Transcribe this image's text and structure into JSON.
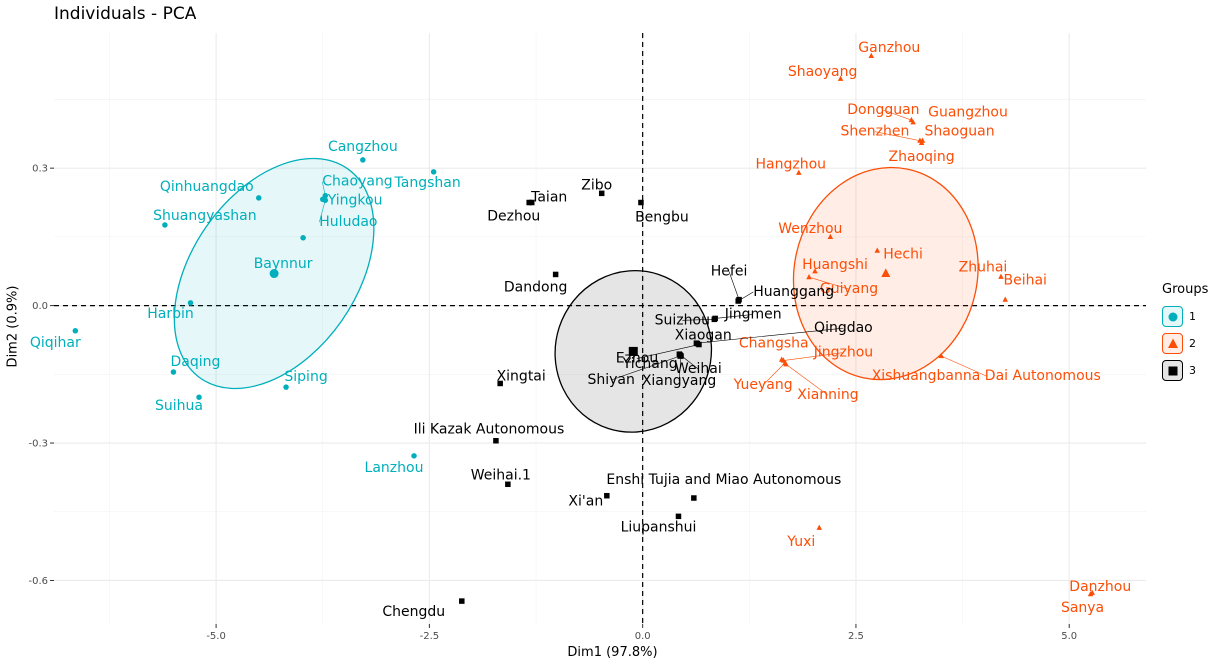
{
  "chart_data": {
    "type": "scatter",
    "title": "Individuals - PCA",
    "xlabel": "Dim1 (97.8%)",
    "ylabel": "Dim2 (0.9%)",
    "xlim": [
      -6.9,
      5.9
    ],
    "ylim": [
      -0.695,
      0.595
    ],
    "xticks": [
      -5.0,
      -2.5,
      0.0,
      2.5,
      5.0
    ],
    "xtick_labels": [
      "-5.0",
      "-2.5",
      "0.0",
      "2.5",
      "5.0"
    ],
    "yticks": [
      -0.6,
      -0.3,
      0.0,
      0.3
    ],
    "ytick_labels": [
      "-0.6",
      "-0.3",
      "0.0",
      "0.3"
    ],
    "grid": true,
    "legend_title": "Groups",
    "legend_position": "right",
    "series": [
      {
        "name": "1",
        "color": "#00AFBB",
        "marker": "circle",
        "centroid": [
          -4.32,
          0.07
        ],
        "ellipse": {
          "center": [
            -4.32,
            0.07
          ],
          "rx": 1.5,
          "ry": 0.18,
          "angle_deg": -55
        },
        "points": [
          {
            "label": "Cangzhou",
            "x": -3.28,
            "y": 0.318
          },
          {
            "label": "Tangshan",
            "x": -2.45,
            "y": 0.292
          },
          {
            "label": "Qinhuangdao",
            "x": -4.5,
            "y": 0.235
          },
          {
            "label": "Chaoyang",
            "x": -3.72,
            "y": 0.24
          },
          {
            "label": "Yingkou",
            "x": -3.75,
            "y": 0.232
          },
          {
            "label": "Huludao",
            "x": -3.72,
            "y": 0.23
          },
          {
            "label": "Shuangyashan",
            "x": -5.6,
            "y": 0.176
          },
          {
            "label": "Baynnur",
            "x": -3.98,
            "y": 0.148
          },
          {
            "label": "Harbin",
            "x": -5.3,
            "y": 0.006
          },
          {
            "label": "Qiqihar",
            "x": -6.65,
            "y": -0.055
          },
          {
            "label": "Daqing",
            "x": -5.5,
            "y": -0.145
          },
          {
            "label": "Siping",
            "x": -4.18,
            "y": -0.178
          },
          {
            "label": "Suihua",
            "x": -5.2,
            "y": -0.2
          },
          {
            "label": "Lanzhou",
            "x": -2.68,
            "y": -0.328
          }
        ]
      },
      {
        "name": "2",
        "color": "#FC4E07",
        "marker": "triangle",
        "centroid": [
          2.85,
          0.07
        ],
        "ellipse": {
          "center": [
            2.85,
            0.07
          ],
          "rx": 1.25,
          "ry": 0.2,
          "angle_deg": -78
        },
        "points": [
          {
            "label": "Ganzhou",
            "x": 2.68,
            "y": 0.545
          },
          {
            "label": "Shaoyang",
            "x": 2.32,
            "y": 0.495
          },
          {
            "label": "Dongguan",
            "x": 3.15,
            "y": 0.405
          },
          {
            "label": "Guangzhou",
            "x": 3.17,
            "y": 0.4
          },
          {
            "label": "Shenzhen",
            "x": 3.25,
            "y": 0.36
          },
          {
            "label": "Shaoguan",
            "x": 3.28,
            "y": 0.36
          },
          {
            "label": "Zhaoqing",
            "x": 3.27,
            "y": 0.355
          },
          {
            "label": "Hangzhou",
            "x": 1.83,
            "y": 0.29
          },
          {
            "label": "Wenzhou",
            "x": 2.2,
            "y": 0.15
          },
          {
            "label": "Hechi",
            "x": 2.75,
            "y": 0.12
          },
          {
            "label": "Huangshi",
            "x": 2.02,
            "y": 0.075
          },
          {
            "label": "Guiyang",
            "x": 1.95,
            "y": 0.062
          },
          {
            "label": "Zhuhai",
            "x": 4.2,
            "y": 0.063
          },
          {
            "label": "Beihai",
            "x": 4.25,
            "y": 0.013
          },
          {
            "label": "Changsha",
            "x": 1.63,
            "y": -0.118
          },
          {
            "label": "Jingzhou",
            "x": 1.65,
            "y": -0.12
          },
          {
            "label": "Yueyang",
            "x": 1.67,
            "y": -0.125
          },
          {
            "label": "Xianning",
            "x": 1.68,
            "y": -0.128
          },
          {
            "label": "Xishuangbanna Dai Autonomous",
            "x": 3.5,
            "y": -0.11
          },
          {
            "label": "Yuxi",
            "x": 2.07,
            "y": -0.485
          },
          {
            "label": "Danzhou",
            "x": 5.27,
            "y": -0.627
          },
          {
            "label": "Sanya",
            "x": 5.25,
            "y": -0.63
          }
        ]
      },
      {
        "name": "3",
        "color": "#000000",
        "marker": "square",
        "centroid": [
          -0.11,
          -0.1
        ],
        "ellipse": {
          "center": [
            -0.11,
            -0.1
          ],
          "rx": 0.95,
          "ry": 0.17,
          "angle_deg": -72
        },
        "points": [
          {
            "label": "Zibo",
            "x": -0.48,
            "y": 0.245
          },
          {
            "label": "Taian",
            "x": -1.33,
            "y": 0.225
          },
          {
            "label": "Dezhou",
            "x": -1.3,
            "y": 0.225
          },
          {
            "label": "Bengbu",
            "x": -0.02,
            "y": 0.225
          },
          {
            "label": "Dandong",
            "x": -1.02,
            "y": 0.068
          },
          {
            "label": "Hefei",
            "x": 1.13,
            "y": 0.013
          },
          {
            "label": "Huanggang",
            "x": 1.12,
            "y": 0.01
          },
          {
            "label": "Suizhou",
            "x": 0.84,
            "y": -0.03
          },
          {
            "label": "Jingmen",
            "x": 0.85,
            "y": -0.028
          },
          {
            "label": "Ezhou",
            "x": 0.66,
            "y": -0.085
          },
          {
            "label": "Xiaogan",
            "x": 0.64,
            "y": -0.083
          },
          {
            "label": "Qingdao",
            "x": 0.63,
            "y": -0.082
          },
          {
            "label": "Yichang",
            "x": 0.44,
            "y": -0.108
          },
          {
            "label": "Weihai",
            "x": 0.43,
            "y": -0.106
          },
          {
            "label": "Shiyan",
            "x": 0.44,
            "y": -0.11
          },
          {
            "label": "Xiangyang",
            "x": 0.45,
            "y": -0.11
          },
          {
            "label": "Xingtai",
            "x": -1.67,
            "y": -0.17
          },
          {
            "label": "Ili Kazak Autonomous",
            "x": -1.72,
            "y": -0.295
          },
          {
            "label": "Weihai.1",
            "x": -1.58,
            "y": -0.39
          },
          {
            "label": "Xi'an",
            "x": -0.42,
            "y": -0.415
          },
          {
            "label": "Enshi Tujia and Miao Autonomous",
            "x": 0.6,
            "y": -0.42
          },
          {
            "label": "Liupanshui",
            "x": 0.42,
            "y": -0.46
          },
          {
            "label": "Chengdu",
            "x": -2.12,
            "y": -0.645
          }
        ]
      }
    ]
  }
}
